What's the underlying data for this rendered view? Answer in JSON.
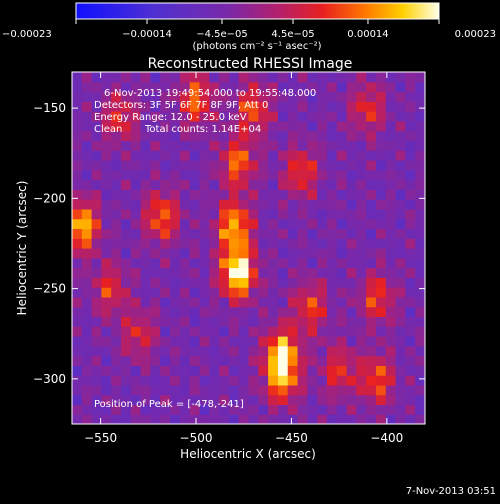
{
  "chart_data": {
    "type": "heatmap",
    "title": "Reconstructed RHESSI Image",
    "xlabel": "Heliocentric X (arcsec)",
    "ylabel": "Heliocentric Y (arcsec)",
    "xlim": [
      -565,
      -380
    ],
    "ylim": [
      -325,
      -130
    ],
    "x_ticks": [
      {
        "value": -550,
        "label": "−550"
      },
      {
        "value": -500,
        "label": "−500"
      },
      {
        "value": -450,
        "label": "−450"
      },
      {
        "value": -400,
        "label": "−400"
      }
    ],
    "y_ticks": [
      {
        "value": -150,
        "label": "−150"
      },
      {
        "value": -200,
        "label": "−200"
      },
      {
        "value": -250,
        "label": "−250"
      },
      {
        "value": -300,
        "label": "−300"
      }
    ],
    "colorbar": {
      "range": [
        -0.00023,
        0.00023
      ],
      "tick_values": [
        -0.00023,
        -0.00014,
        -4.5e-05,
        4.5e-05,
        0.00014,
        0.00023
      ],
      "tick_labels": [
        "−0.00023",
        "−0.00014",
        "−4.5e−05",
        "4.5e−05",
        "0.00014",
        "0.00023"
      ],
      "unit_label": "(photons cm⁻² s⁻¹ asec⁻²)"
    },
    "annotations": [
      "6-Nov-2013 19:49:54.000 to 19:55:48.000",
      "Detectors: 3F 5F 6F 7F 8F 9F, Att 0",
      "Energy Range: 12.0 - 25.0 keV",
      "Clean",
      "Total counts: 1.14E+04"
    ],
    "peak_label": "Position of Peak = [-478,-241]",
    "peak": [
      -478,
      -241
    ],
    "bright_sources": [
      {
        "x": -478,
        "y": -241,
        "strength": 1.0
      },
      {
        "x": -480,
        "y": -215,
        "strength": 0.75
      },
      {
        "x": -478,
        "y": -180,
        "strength": 0.6
      },
      {
        "x": -455,
        "y": -285,
        "strength": 0.75
      },
      {
        "x": -455,
        "y": -300,
        "strength": 0.65
      },
      {
        "x": -560,
        "y": -215,
        "strength": 0.8
      },
      {
        "x": -518,
        "y": -210,
        "strength": 0.6
      },
      {
        "x": -500,
        "y": -145,
        "strength": 0.6
      },
      {
        "x": -470,
        "y": -150,
        "strength": 0.55
      },
      {
        "x": -445,
        "y": -185,
        "strength": 0.5
      },
      {
        "x": -440,
        "y": -260,
        "strength": 0.5
      },
      {
        "x": -410,
        "y": -150,
        "strength": 0.45
      },
      {
        "x": -405,
        "y": -255,
        "strength": 0.5
      },
      {
        "x": -405,
        "y": -300,
        "strength": 0.55
      },
      {
        "x": -425,
        "y": -295,
        "strength": 0.45
      },
      {
        "x": -540,
        "y": -155,
        "strength": 0.45
      },
      {
        "x": -530,
        "y": -275,
        "strength": 0.4
      },
      {
        "x": -545,
        "y": -250,
        "strength": 0.45
      }
    ],
    "grid": false
  },
  "footer_date": "7-Nov-2013 03:51"
}
